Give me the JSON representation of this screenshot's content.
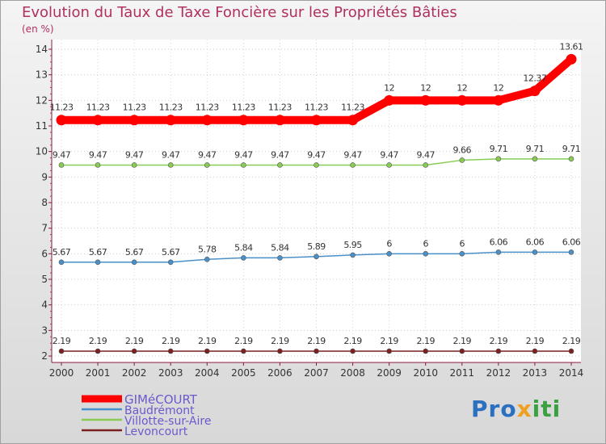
{
  "title": "Evolution du Taux de Taxe Foncière sur les Propriétés Bâties",
  "unit": "(en %)",
  "logo": {
    "p1": "Pro",
    "p2": "x",
    "p3": "iti"
  },
  "chart_data": {
    "type": "line",
    "title": "Evolution du Taux de Taxe Foncière sur les Propriétés Bâties",
    "ylabel": "(en %)",
    "xlabel": "",
    "ylim": [
      2,
      14
    ],
    "yticks": [
      2,
      3,
      4,
      5,
      6,
      7,
      8,
      9,
      10,
      11,
      12,
      13,
      14
    ],
    "x": [
      "2000",
      "2001",
      "2002",
      "2003",
      "2004",
      "2005",
      "2006",
      "2007",
      "2008",
      "2009",
      "2010",
      "2011",
      "2012",
      "2013",
      "2014"
    ],
    "series": [
      {
        "name": "GIMéCOURT",
        "color": "#ff0000",
        "values": [
          11.23,
          11.23,
          11.23,
          11.23,
          11.23,
          11.23,
          11.23,
          11.23,
          11.23,
          12,
          12,
          12,
          12,
          12.37,
          13.61
        ],
        "labels": [
          "11.23",
          "11.23",
          "11.23",
          "11.23",
          "11.23",
          "11.23",
          "11.23",
          "11.23",
          "11.23",
          "12",
          "12",
          "12",
          "12",
          "12.37",
          "13.61"
        ]
      },
      {
        "name": "Baudrémont",
        "color": "#4a90c8",
        "values": [
          5.67,
          5.67,
          5.67,
          5.67,
          5.78,
          5.84,
          5.84,
          5.89,
          5.95,
          6,
          6,
          6,
          6.06,
          6.06,
          6.06
        ],
        "labels": [
          "5.67",
          "5.67",
          "5.67",
          "5.67",
          "5.78",
          "5.84",
          "5.84",
          "5.89",
          "5.95",
          "6",
          "6",
          "6",
          "6.06",
          "6.06",
          "6.06"
        ]
      },
      {
        "name": "Villotte-sur-Aire",
        "color": "#88cc55",
        "values": [
          9.47,
          9.47,
          9.47,
          9.47,
          9.47,
          9.47,
          9.47,
          9.47,
          9.47,
          9.47,
          9.47,
          9.66,
          9.71,
          9.71,
          9.71
        ],
        "labels": [
          "9.47",
          "9.47",
          "9.47",
          "9.47",
          "9.47",
          "9.47",
          "9.47",
          "9.47",
          "9.47",
          "9.47",
          "9.47",
          "9.66",
          "9.71",
          "9.71",
          "9.71"
        ]
      },
      {
        "name": "Levoncourt",
        "color": "#7a2020",
        "values": [
          2.19,
          2.19,
          2.19,
          2.19,
          2.19,
          2.19,
          2.19,
          2.19,
          2.19,
          2.19,
          2.19,
          2.19,
          2.19,
          2.19,
          2.19
        ],
        "labels": [
          "2.19",
          "2.19",
          "2.19",
          "2.19",
          "2.19",
          "2.19",
          "2.19",
          "2.19",
          "2.19",
          "2.19",
          "2.19",
          "2.19",
          "2.19",
          "2.19",
          "2.19"
        ]
      }
    ],
    "legend": [
      "GIMéCOURT",
      "Baudrémont",
      "Villotte-sur-Aire",
      "Levoncourt"
    ]
  }
}
